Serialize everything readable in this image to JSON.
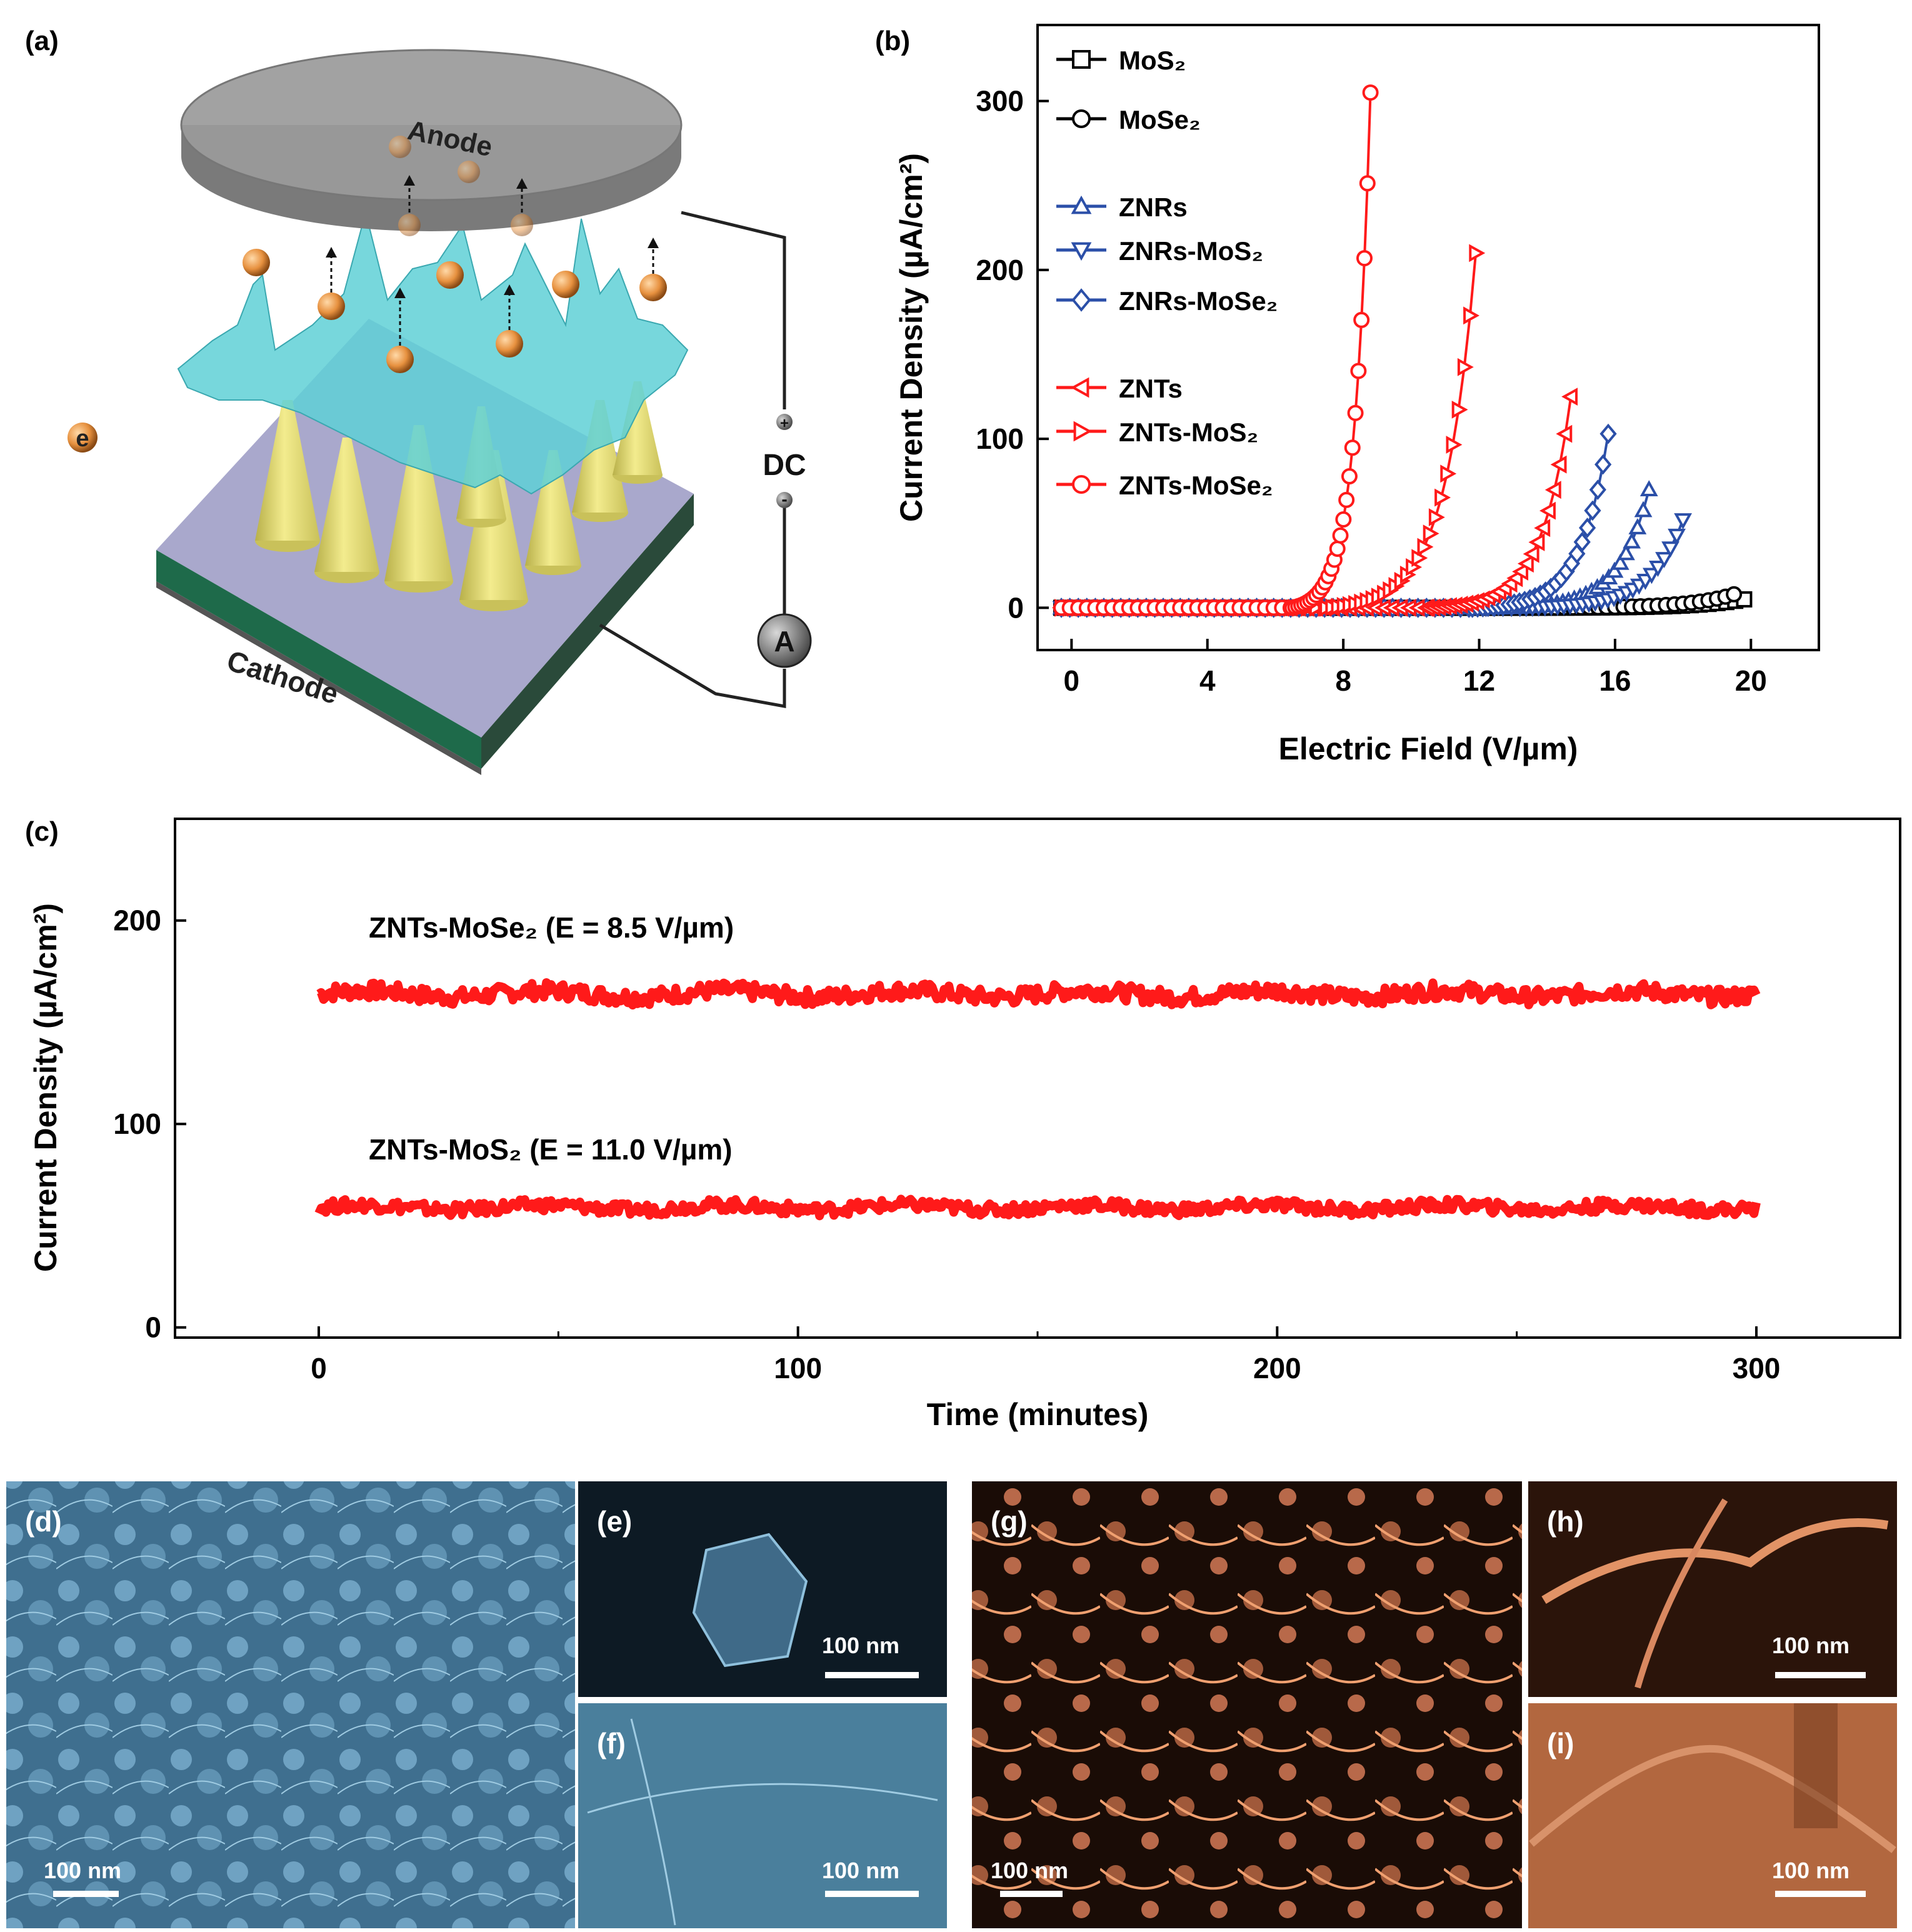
{
  "panels": {
    "a": {
      "label": "(a)",
      "anode": "Anode",
      "cathode": "Cathode",
      "power": "DC",
      "ammeter": "A",
      "electron": "e",
      "plus": "+",
      "minus": "-",
      "colors": {
        "anode": "#9a9a9a",
        "cathode_top": "#a9a8cc",
        "cathode_green": "#1e6a4a",
        "cones": "#e9e27a",
        "mesh": "#5fd0d6",
        "electron": "#e7913f"
      }
    },
    "b": {
      "label": "(b)"
    },
    "c": {
      "label": "(c)"
    },
    "d": {
      "label": "(d)",
      "scale": "100 nm",
      "color": "#3f6f8f"
    },
    "e": {
      "label": "(e)",
      "scale": "100 nm",
      "color": "#0d1a24"
    },
    "f": {
      "label": "(f)",
      "scale": "100 nm",
      "color": "#4a7f9c"
    },
    "g": {
      "label": "(g)",
      "scale": "100 nm",
      "color": "#1a0c06"
    },
    "h": {
      "label": "(h)",
      "scale": "100 nm",
      "color": "#2b140a"
    },
    "i": {
      "label": "(i)",
      "scale": "100 nm",
      "color": "#b2673f"
    }
  },
  "chart_data": [
    {
      "panel": "b",
      "type": "line",
      "title": "",
      "xlabel": "Electric Field (V/µm)",
      "ylabel": "Current Density (µA/cm²)",
      "xlim": [
        -1,
        22
      ],
      "ylim": [
        -25,
        345
      ],
      "xticks": [
        0,
        4,
        8,
        12,
        16,
        20
      ],
      "yticks": [
        0,
        100,
        200,
        300
      ],
      "legend_position": "top-left",
      "series": [
        {
          "name": "MoS₂",
          "color": "#000000",
          "marker": "square",
          "onset": 13.0,
          "end": 19.8,
          "peak": 5
        },
        {
          "name": "MoSe₂",
          "color": "#000000",
          "marker": "circle",
          "onset": 13.0,
          "end": 19.5,
          "peak": 8
        },
        {
          "name": "ZNRs",
          "color": "#2b4fa8",
          "marker": "triangle-up",
          "onset": 12.6,
          "end": 17.0,
          "peak": 70
        },
        {
          "name": "ZNRs-MoS₂",
          "color": "#2b4fa8",
          "marker": "triangle-down",
          "onset": 13.2,
          "end": 18.0,
          "peak": 52
        },
        {
          "name": "ZNRs-MoSe₂",
          "color": "#2b4fa8",
          "marker": "diamond",
          "onset": 11.8,
          "end": 15.8,
          "peak": 103
        },
        {
          "name": "ZNTs",
          "color": "#ff1a1a",
          "marker": "triangle-left",
          "onset": 10.5,
          "end": 14.7,
          "peak": 125
        },
        {
          "name": "ZNTs-MoS₂",
          "color": "#ff1a1a",
          "marker": "triangle-right",
          "onset": 7.5,
          "end": 11.9,
          "peak": 210
        },
        {
          "name": "ZNTs-MoSe₂",
          "color": "#ff1a1a",
          "marker": "circle",
          "onset": 6.5,
          "end": 8.8,
          "peak": 305
        }
      ]
    },
    {
      "panel": "c",
      "type": "line",
      "title": "",
      "xlabel": "Time (minutes)",
      "ylabel": "Current Density (µA/cm²)",
      "xlim": [
        -30,
        330
      ],
      "ylim": [
        -5,
        250
      ],
      "xticks": [
        0,
        100,
        200,
        300
      ],
      "yticks": [
        0,
        100,
        200
      ],
      "series": [
        {
          "name": "ZNTs-MoSe₂ (E = 8.5 V/µm)",
          "color": "#ff1a1a",
          "x_start": 0,
          "x_end": 300,
          "level": 164,
          "noise": 4
        },
        {
          "name": "ZNTs-MoS₂ (E = 11.0 V/µm)",
          "color": "#ff1a1a",
          "x_start": 0,
          "x_end": 300,
          "level": 59,
          "noise": 3
        }
      ],
      "annotations": [
        "ZNTs-MoSe₂ (E = 8.5 V/µm)",
        "ZNTs-MoS₂ (E = 11.0 V/µm)"
      ]
    }
  ]
}
